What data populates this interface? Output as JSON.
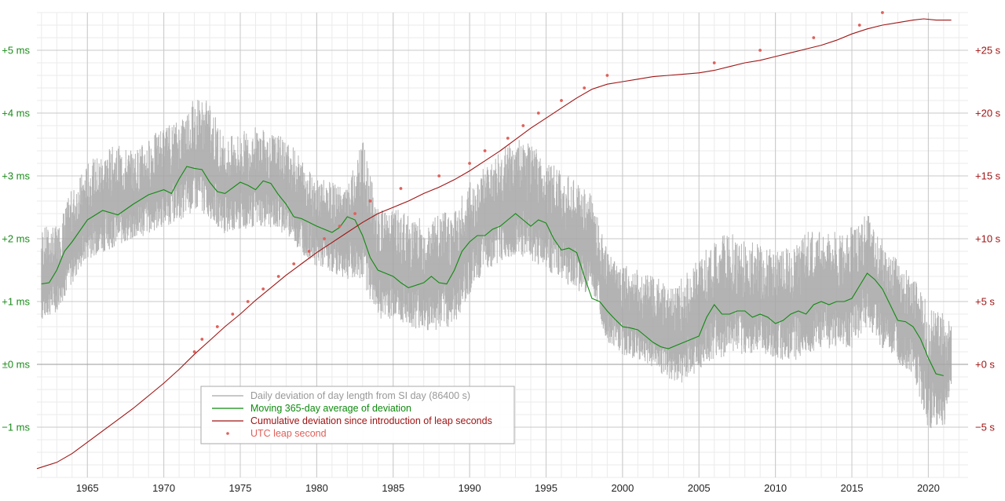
{
  "chart_data": {
    "type": "line",
    "title": "",
    "x_axis": {
      "label": "",
      "range": [
        1961.7,
        2022.6
      ],
      "ticks": [
        {
          "value": 1965,
          "label": "1965"
        },
        {
          "value": 1970,
          "label": "1970"
        },
        {
          "value": 1975,
          "label": "1975"
        },
        {
          "value": 1980,
          "label": "1980"
        },
        {
          "value": 1985,
          "label": "1985"
        },
        {
          "value": 1990,
          "label": "1990"
        },
        {
          "value": 1995,
          "label": "1995"
        },
        {
          "value": 2000,
          "label": "2000"
        },
        {
          "value": 2005,
          "label": "2005"
        },
        {
          "value": 2010,
          "label": "2010"
        },
        {
          "value": 2015,
          "label": "2015"
        },
        {
          "value": 2020,
          "label": "2020"
        }
      ]
    },
    "y_left": {
      "unit": "ms",
      "range": [
        -1.8,
        5.6
      ],
      "ticks": [
        {
          "value": -1,
          "label": "−1 ms"
        },
        {
          "value": 0,
          "label": "±0 ms"
        },
        {
          "value": 1,
          "label": "+1 ms"
        },
        {
          "value": 2,
          "label": "+2 ms"
        },
        {
          "value": 3,
          "label": "+3 ms"
        },
        {
          "value": 4,
          "label": "+4 ms"
        },
        {
          "value": 5,
          "label": "+5 ms"
        }
      ],
      "color": "#1a8a1a"
    },
    "y_right": {
      "unit": "s",
      "range": [
        -9,
        28
      ],
      "ticks": [
        {
          "value": -5,
          "label": "−5 s"
        },
        {
          "value": 0,
          "label": "+0 s"
        },
        {
          "value": 5,
          "label": "+5 s"
        },
        {
          "value": 10,
          "label": "+10 s"
        },
        {
          "value": 15,
          "label": "+15 s"
        },
        {
          "value": 20,
          "label": "+20 s"
        },
        {
          "value": 25,
          "label": "+25 s"
        }
      ],
      "color": "#a01414"
    },
    "grid": true,
    "legend_position": "bottom-left",
    "series": [
      {
        "name": "Daily deviation of day length from SI day (86400 s)",
        "axis": "left",
        "color": "#a6a6a6",
        "style": "band",
        "x": [
          1962,
          1963,
          1964,
          1965,
          1966,
          1967,
          1968,
          1969,
          1970,
          1971,
          1972,
          1973,
          1974,
          1975,
          1976,
          1977,
          1978,
          1979,
          1980,
          1981,
          1982,
          1983,
          1984,
          1985,
          1986,
          1987,
          1988,
          1989,
          1990,
          1991,
          1992,
          1993,
          1994,
          1995,
          1996,
          1997,
          1998,
          1999,
          2000,
          2001,
          2002,
          2003,
          2004,
          2005,
          2006,
          2007,
          2008,
          2009,
          2010,
          2011,
          2012,
          2013,
          2014,
          2015,
          2016,
          2017,
          2018,
          2019,
          2020,
          2021,
          2021.5
        ],
        "low": [
          0.4,
          0.6,
          1.0,
          1.4,
          1.5,
          1.6,
          1.7,
          1.8,
          1.9,
          2.0,
          2.1,
          2.0,
          1.8,
          1.8,
          1.9,
          1.9,
          1.8,
          1.5,
          1.3,
          1.2,
          1.1,
          0.9,
          0.4,
          0.4,
          0.3,
          0.2,
          0.2,
          0.3,
          0.8,
          1.2,
          1.3,
          1.4,
          1.3,
          1.2,
          1.0,
          0.8,
          0.9,
          0.1,
          -0.1,
          -0.2,
          -0.3,
          -0.5,
          -0.6,
          -0.4,
          -0.3,
          -0.2,
          -0.2,
          -0.1,
          -0.2,
          -0.3,
          -0.2,
          -0.1,
          -0.1,
          -0.1,
          0.3,
          -0.1,
          -0.3,
          -0.5,
          -1.4,
          -1.4,
          -0.5
        ],
        "high": [
          2.2,
          2.2,
          2.8,
          3.2,
          3.4,
          3.5,
          3.4,
          3.6,
          3.8,
          3.9,
          4.3,
          4.2,
          3.6,
          3.7,
          3.8,
          3.7,
          3.6,
          3.3,
          3.0,
          2.9,
          2.8,
          3.6,
          2.5,
          2.5,
          2.4,
          2.3,
          2.4,
          2.5,
          2.9,
          3.2,
          3.4,
          3.6,
          3.5,
          3.3,
          3.1,
          2.9,
          2.7,
          1.8,
          1.6,
          1.5,
          1.4,
          1.3,
          1.4,
          1.7,
          2.0,
          2.1,
          2.0,
          1.9,
          1.8,
          1.9,
          2.1,
          2.2,
          2.1,
          2.2,
          2.4,
          2.0,
          1.7,
          1.4,
          1.0,
          0.8,
          0.7
        ]
      },
      {
        "name": "Moving 365-day average of deviation",
        "axis": "left",
        "color": "#0f8a0f",
        "x": [
          1962.0,
          1962.5,
          1963.0,
          1963.5,
          1964.0,
          1965.0,
          1966.0,
          1967.0,
          1968.0,
          1969.0,
          1970.0,
          1970.5,
          1971.0,
          1971.5,
          1972.0,
          1972.5,
          1973.0,
          1973.5,
          1974.0,
          1975.0,
          1975.5,
          1976.0,
          1976.5,
          1977.0,
          1977.5,
          1978.0,
          1978.5,
          1979.0,
          1980.0,
          1981.0,
          1981.5,
          1982.0,
          1982.5,
          1983.0,
          1983.5,
          1984.0,
          1984.5,
          1985.0,
          1985.5,
          1986.0,
          1987.0,
          1987.5,
          1988.0,
          1988.5,
          1989.0,
          1989.5,
          1990.0,
          1990.5,
          1991.0,
          1991.5,
          1992.0,
          1992.5,
          1993.0,
          1993.5,
          1994.0,
          1994.5,
          1995.0,
          1995.5,
          1996.0,
          1996.5,
          1997.0,
          1997.5,
          1998.0,
          1998.5,
          1999.0,
          1999.5,
          2000.0,
          2000.5,
          2001.0,
          2001.5,
          2002.0,
          2002.5,
          2003.0,
          2003.5,
          2004.0,
          2004.5,
          2005.0,
          2005.5,
          2006.0,
          2006.5,
          2007.0,
          2007.5,
          2008.0,
          2008.5,
          2009.0,
          2009.5,
          2010.0,
          2010.5,
          2011.0,
          2011.5,
          2012.0,
          2012.5,
          2013.0,
          2013.5,
          2014.0,
          2014.5,
          2015.0,
          2015.5,
          2016.0,
          2016.5,
          2017.0,
          2017.5,
          2018.0,
          2018.5,
          2019.0,
          2019.5,
          2020.0,
          2020.5,
          2021.0
        ],
        "y": [
          1.28,
          1.3,
          1.5,
          1.8,
          1.95,
          2.3,
          2.45,
          2.38,
          2.55,
          2.7,
          2.78,
          2.72,
          2.95,
          3.15,
          3.12,
          3.1,
          2.9,
          2.75,
          2.72,
          2.9,
          2.85,
          2.78,
          2.92,
          2.88,
          2.7,
          2.55,
          2.35,
          2.32,
          2.2,
          2.1,
          2.18,
          2.35,
          2.3,
          2.05,
          1.7,
          1.5,
          1.45,
          1.4,
          1.3,
          1.22,
          1.3,
          1.4,
          1.3,
          1.28,
          1.5,
          1.8,
          1.95,
          2.05,
          2.05,
          2.15,
          2.2,
          2.3,
          2.4,
          2.3,
          2.2,
          2.3,
          2.25,
          2.0,
          1.82,
          1.85,
          1.78,
          1.4,
          1.05,
          1.0,
          0.85,
          0.72,
          0.6,
          0.58,
          0.55,
          0.45,
          0.35,
          0.28,
          0.25,
          0.3,
          0.35,
          0.4,
          0.45,
          0.75,
          0.95,
          0.8,
          0.8,
          0.85,
          0.85,
          0.75,
          0.8,
          0.75,
          0.65,
          0.7,
          0.8,
          0.85,
          0.8,
          0.95,
          1.0,
          0.95,
          1.0,
          1.0,
          1.05,
          1.25,
          1.45,
          1.35,
          1.2,
          0.95,
          0.7,
          0.68,
          0.6,
          0.4,
          0.1,
          -0.15,
          -0.18
        ]
      },
      {
        "name": "Cumulative deviation since introduction of leap seconds",
        "axis": "right",
        "color": "#a01414",
        "x": [
          1961.7,
          1963,
          1964,
          1965,
          1966,
          1967,
          1968,
          1969,
          1970,
          1971,
          1972,
          1973,
          1974,
          1975,
          1976,
          1977,
          1978,
          1979,
          1980,
          1981,
          1982,
          1983,
          1984,
          1985,
          1986,
          1987,
          1988,
          1989,
          1990,
          1991,
          1992,
          1993,
          1994,
          1995,
          1996,
          1997,
          1998,
          1999,
          2000,
          2001,
          2002,
          2003,
          2004,
          2005,
          2006,
          2007,
          2008,
          2009,
          2010,
          2011,
          2012,
          2013,
          2014,
          2015,
          2016,
          2017,
          2018,
          2019,
          2019.7,
          2020.5,
          2021.5
        ],
        "y": [
          -8.3,
          -7.8,
          -7.1,
          -6.2,
          -5.3,
          -4.4,
          -3.5,
          -2.5,
          -1.5,
          -0.4,
          0.8,
          1.9,
          3.0,
          4.0,
          5.1,
          6.1,
          7.1,
          8.0,
          8.9,
          9.7,
          10.5,
          11.3,
          12.0,
          12.5,
          13.0,
          13.6,
          14.1,
          14.7,
          15.4,
          16.2,
          17.0,
          17.9,
          18.8,
          19.6,
          20.4,
          21.2,
          21.9,
          22.3,
          22.5,
          22.7,
          22.9,
          23.0,
          23.1,
          23.2,
          23.4,
          23.7,
          24.0,
          24.2,
          24.5,
          24.8,
          25.1,
          25.4,
          25.8,
          26.3,
          26.7,
          27.0,
          27.2,
          27.4,
          27.5,
          27.4,
          27.4
        ]
      },
      {
        "name": "UTC leap second",
        "axis": "right",
        "color": "#e0605a",
        "style": "points",
        "x": [
          1972.0,
          1972.5,
          1973.5,
          1974.5,
          1975.5,
          1976.5,
          1977.5,
          1978.5,
          1979.5,
          1980.5,
          1981.5,
          1982.5,
          1983.5,
          1985.5,
          1988.0,
          1990.0,
          1991.0,
          1992.5,
          1993.5,
          1994.5,
          1996.0,
          1997.5,
          1999.0,
          2006.0,
          2009.0,
          2012.5,
          2015.5,
          2017.0
        ],
        "y": [
          1.0,
          2.0,
          3.0,
          4.0,
          5.0,
          6.0,
          7.0,
          8.0,
          9.0,
          10.0,
          11.0,
          12.0,
          13.0,
          14.0,
          15.0,
          16.0,
          17.0,
          18.0,
          19.0,
          20.0,
          21.0,
          22.0,
          23.0,
          24.0,
          25.0,
          26.0,
          27.0,
          28.0
        ]
      }
    ]
  }
}
